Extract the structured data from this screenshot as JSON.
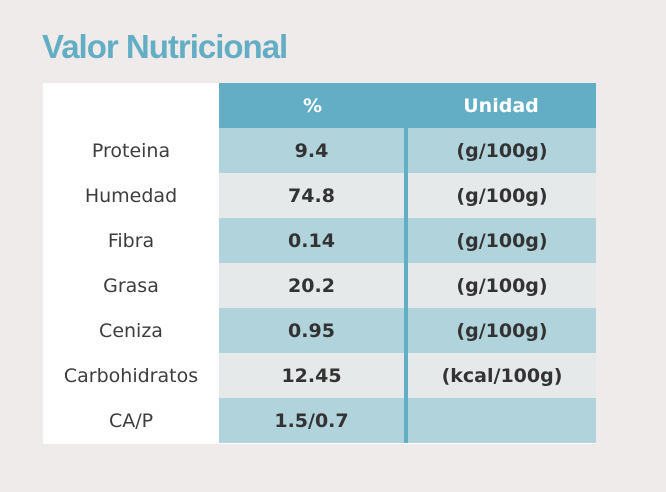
{
  "title": "Valor Nutricional",
  "table": {
    "headers": [
      "",
      "%",
      "Unidad"
    ],
    "rows": [
      {
        "name": "Proteina",
        "percent": "9.4",
        "unit": "(g/100g)"
      },
      {
        "name": "Humedad",
        "percent": "74.8",
        "unit": "(g/100g)"
      },
      {
        "name": "Fibra",
        "percent": "0.14",
        "unit": "(g/100g)"
      },
      {
        "name": "Grasa",
        "percent": "20.2",
        "unit": "(g/100g)"
      },
      {
        "name": "Ceniza",
        "percent": "0.95",
        "unit": "(g/100g)"
      },
      {
        "name": "Carbohidratos",
        "percent": "12.45",
        "unit": "(kcal/100g)"
      },
      {
        "name": "CA/P",
        "percent": "1.5/0.7",
        "unit": ""
      }
    ]
  },
  "colors": {
    "accent": "#63aec4",
    "row_tint_dark": "#b1d3dc",
    "row_tint_light": "#e5e9ea",
    "page_background": "#efebea"
  }
}
